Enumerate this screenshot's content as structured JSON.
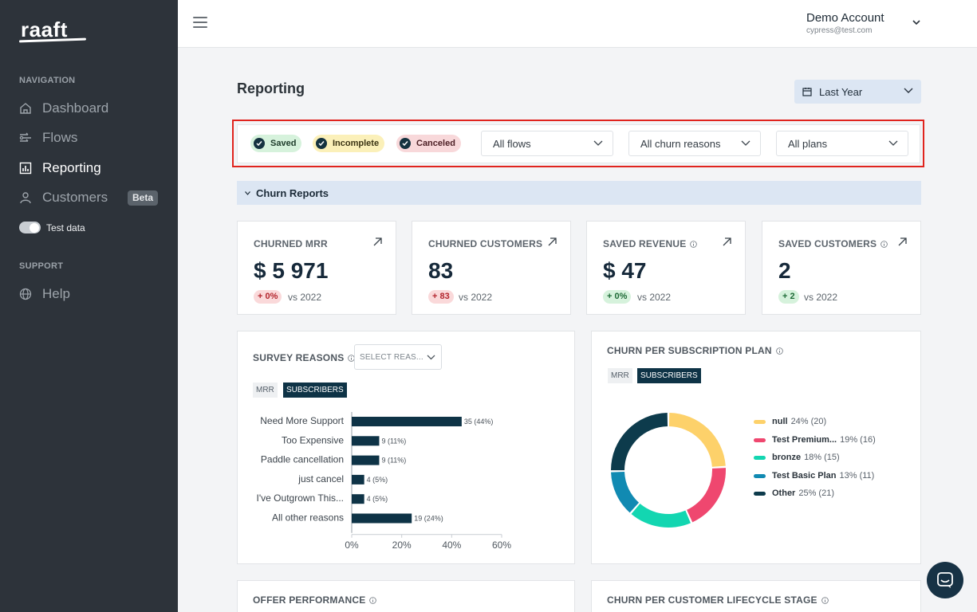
{
  "sidebar": {
    "logo": "raaft",
    "navigation_heading": "NAVIGATION",
    "items": [
      {
        "label": "Dashboard",
        "icon": "home-icon"
      },
      {
        "label": "Flows",
        "icon": "flows-icon"
      },
      {
        "label": "Reporting",
        "icon": "chart-icon",
        "active": true
      },
      {
        "label": "Customers",
        "icon": "user-icon",
        "badge": "Beta"
      }
    ],
    "test_data_label": "Test data",
    "test_data_enabled": true,
    "support_heading": "SUPPORT",
    "help_label": "Help"
  },
  "topbar": {
    "account_name": "Demo Account",
    "account_email": "cypress@test.com"
  },
  "page": {
    "title": "Reporting",
    "date_range": "Last Year"
  },
  "filters": {
    "chips": [
      "Saved",
      "Incomplete",
      "Canceled"
    ],
    "flows": "All flows",
    "churn_reasons": "All churn reasons",
    "plans": "All plans"
  },
  "section": {
    "title": "Churn Reports"
  },
  "kpis": [
    {
      "title": "CHURNED MRR",
      "value": "$ 5 971",
      "delta": "+ 0%",
      "delta_tone": "red",
      "vs": "vs 2022",
      "info": false
    },
    {
      "title": "CHURNED CUSTOMERS",
      "value": "83",
      "delta": "+ 83",
      "delta_tone": "red",
      "vs": "vs 2022",
      "info": false
    },
    {
      "title": "SAVED REVENUE",
      "value": "$ 47",
      "delta": "+ 0%",
      "delta_tone": "green",
      "vs": "vs 2022",
      "info": true
    },
    {
      "title": "SAVED CUSTOMERS",
      "value": "2",
      "delta": "+ 2",
      "delta_tone": "green",
      "vs": "vs 2022",
      "info": true
    }
  ],
  "survey": {
    "title": "SURVEY REASONS",
    "select_placeholder": "SELECT REAS...",
    "toggle": [
      "MRR",
      "SUBSCRIBERS"
    ],
    "active_toggle": "SUBSCRIBERS"
  },
  "plan_panel": {
    "title": "CHURN PER SUBSCRIPTION PLAN",
    "toggle": [
      "MRR",
      "SUBSCRIBERS"
    ],
    "active_toggle": "SUBSCRIBERS"
  },
  "bottom_panels": {
    "offer": "OFFER PERFORMANCE",
    "lifecycle": "CHURN PER CUSTOMER LIFECYCLE STAGE"
  },
  "chart_data": [
    {
      "type": "bar",
      "orientation": "horizontal",
      "categories": [
        "Need More Support",
        "Too Expensive",
        "Paddle cancellation",
        "just cancel",
        "I've Outgrown This...",
        "All other reasons"
      ],
      "values": [
        35,
        9,
        9,
        4,
        4,
        19
      ],
      "labels": [
        "35 (44%)",
        "9 (11%)",
        "9 (11%)",
        "4 (5%)",
        "4 (5%)",
        "19 (24%)"
      ],
      "percent": [
        44,
        11,
        11,
        5,
        5,
        24
      ],
      "xlim": [
        0,
        60
      ],
      "xticks": [
        "0%",
        "20%",
        "40%",
        "60%"
      ],
      "color": "#0e3346"
    },
    {
      "type": "pie",
      "donut": true,
      "slices": [
        {
          "name": "null",
          "percent": 24,
          "count": 20,
          "color": "#fdd16a",
          "text": "24% (20)"
        },
        {
          "name": "Test Premium...",
          "percent": 19,
          "count": 16,
          "color": "#ef476f",
          "text": "19% (16)"
        },
        {
          "name": "bronze",
          "percent": 18,
          "count": 15,
          "color": "#13d6b1",
          "text": "18% (15)"
        },
        {
          "name": "Test Basic Plan",
          "percent": 13,
          "count": 11,
          "color": "#118ab2",
          "text": "13% (11)"
        },
        {
          "name": "Other",
          "percent": 25,
          "count": 21,
          "color": "#0d3b4c",
          "text": "25% (21)"
        }
      ]
    }
  ]
}
